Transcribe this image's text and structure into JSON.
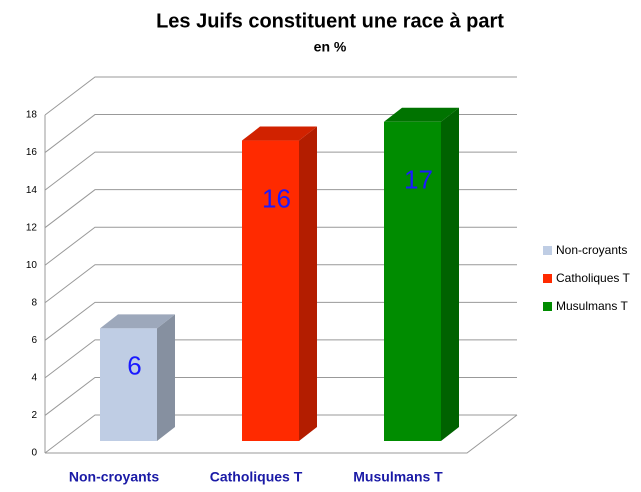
{
  "chart_data": {
    "type": "bar3d",
    "title": "Les Juifs constituent une race à part",
    "subtitle": "en %",
    "categories": [
      "Non-croyants",
      "Catholiques T",
      "Musulmans T"
    ],
    "values": [
      6,
      16,
      17
    ],
    "colors": [
      "#bfcde4",
      "#ff2a00",
      "#008c00"
    ],
    "ylim": [
      0,
      18
    ],
    "yticks": [
      0,
      2,
      4,
      6,
      8,
      10,
      12,
      14,
      16,
      18
    ],
    "grid": true,
    "legend": "right"
  }
}
